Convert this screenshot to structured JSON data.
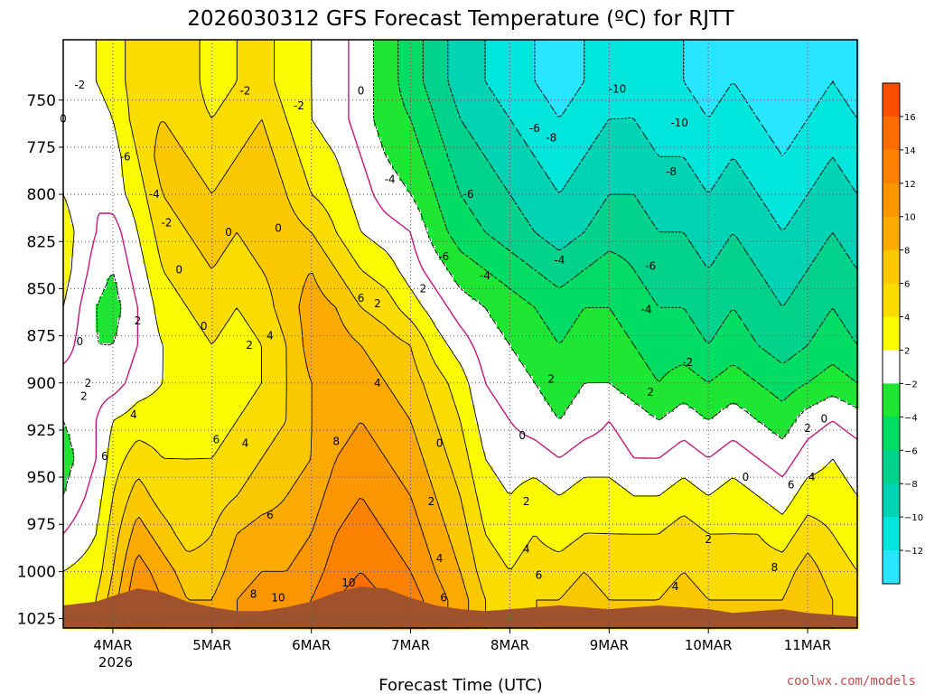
{
  "chart_data": {
    "type": "heatmap",
    "title": "2026030312 GFS Forecast Temperature (ºC) for RJTT",
    "xlabel": "Forecast Time (UTC)",
    "ylabel": "",
    "credit": "coolwx.com/models",
    "x_ticks": [
      "4MAR",
      "5MAR",
      "6MAR",
      "7MAR",
      "8MAR",
      "9MAR",
      "10MAR",
      "11MAR"
    ],
    "x_year": "2026",
    "xlim_hours": [
      -12,
      180
    ],
    "y_ticks": [
      "750",
      "775",
      "800",
      "825",
      "850",
      "875",
      "900",
      "925",
      "950",
      "975",
      "1000",
      "1025"
    ],
    "y_values": [
      750,
      775,
      800,
      825,
      850,
      875,
      900,
      925,
      950,
      975,
      1000,
      1025
    ],
    "ylim_hpa": [
      718,
      1030
    ],
    "colorbar_ticks": [
      "16",
      "14",
      "12",
      "10",
      "8",
      "6",
      "4",
      "2",
      "−2",
      "−4",
      "−6",
      "−8",
      "−10",
      "−12"
    ],
    "colorbar_colors": [
      "#fa5000",
      "#fa6e00",
      "#fa8200",
      "#fa9600",
      "#faaa00",
      "#fac800",
      "#fadc00",
      "#fafa00",
      "#ffffff",
      "#1ee632",
      "#00dc64",
      "#00d28c",
      "#00d2b4",
      "#00e6dc",
      "#28e6ff"
    ],
    "levels_hpa": [
      740,
      760,
      780,
      800,
      820,
      840,
      860,
      880,
      900,
      920,
      940,
      960,
      980,
      1000,
      1015
    ],
    "times_hours": [
      -12,
      -4,
      0,
      6,
      12,
      18,
      24,
      30,
      36,
      42,
      48,
      54,
      60,
      66,
      72,
      78,
      84,
      90,
      96,
      102,
      108,
      114,
      120,
      126,
      132,
      138,
      144,
      150,
      156,
      162,
      168,
      174,
      180
    ],
    "temperature_c": [
      [
        1,
        2,
        3,
        5,
        6,
        5,
        3,
        4,
        5,
        3,
        2,
        1,
        -1,
        -3,
        -5,
        -7,
        -9,
        -10,
        -11,
        -12,
        -13,
        -12,
        -11,
        -10,
        -11,
        -12,
        -13,
        -12,
        -13,
        -14,
        -13,
        -12,
        -13
      ],
      [
        1,
        1,
        2,
        5,
        6,
        5,
        4,
        5,
        6,
        4,
        2,
        1,
        -1,
        -3,
        -4,
        -6,
        -8,
        -9,
        -10,
        -11,
        -12,
        -11,
        -10,
        -10,
        -11,
        -11,
        -12,
        -11,
        -12,
        -13,
        -12,
        -11,
        -12
      ],
      [
        2,
        1,
        1,
        4,
        7,
        6,
        5,
        6,
        7,
        5,
        3,
        2,
        0,
        -2,
        -3,
        -5,
        -7,
        -8,
        -9,
        -10,
        -11,
        -10,
        -9,
        -9,
        -10,
        -10,
        -11,
        -10,
        -11,
        -12,
        -11,
        -10,
        -11
      ],
      [
        2,
        0,
        1,
        3,
        6,
        7,
        6,
        7,
        8,
        6,
        4,
        3,
        1,
        -1,
        -2,
        -4,
        -6,
        -7,
        -8,
        -9,
        -10,
        -9,
        -8,
        -8,
        -9,
        -9,
        -10,
        -9,
        -10,
        -11,
        -10,
        -9,
        -10
      ],
      [
        3,
        0,
        -1,
        2,
        5,
        6,
        7,
        6,
        7,
        7,
        6,
        4,
        2,
        1,
        0,
        -3,
        -5,
        -6,
        -7,
        -8,
        -9,
        -8,
        -7,
        -7,
        -8,
        -8,
        -9,
        -8,
        -9,
        -10,
        -9,
        -8,
        -9
      ],
      [
        3,
        -1,
        -2,
        1,
        4,
        5,
        6,
        5,
        6,
        7,
        8,
        6,
        4,
        3,
        1,
        -1,
        -3,
        -4,
        -5,
        -6,
        -7,
        -6,
        -5,
        -6,
        -7,
        -7,
        -8,
        -7,
        -8,
        -9,
        -8,
        -7,
        -8
      ],
      [
        2,
        -2,
        -3,
        0,
        3,
        4,
        5,
        4,
        5,
        7,
        9,
        8,
        6,
        5,
        3,
        1,
        -1,
        -2,
        -3,
        -4,
        -5,
        -4,
        -4,
        -5,
        -6,
        -6,
        -7,
        -6,
        -7,
        -8,
        -7,
        -6,
        -7
      ],
      [
        1,
        -2,
        -2,
        0,
        2,
        3,
        4,
        3,
        4,
        6,
        9,
        9,
        8,
        7,
        6,
        3,
        1,
        -1,
        -2,
        -3,
        -4,
        -3,
        -3,
        -4,
        -5,
        -5,
        -6,
        -5,
        -6,
        -7,
        -6,
        -5,
        -6
      ],
      [
        -1,
        -1,
        -1,
        1,
        2,
        3,
        3,
        3,
        4,
        6,
        8,
        9,
        9,
        8,
        7,
        5,
        3,
        0,
        -1,
        -2,
        -3,
        -2,
        -2,
        -3,
        -4,
        -3,
        -4,
        -3,
        -4,
        -5,
        -4,
        -3,
        -4
      ],
      [
        -2,
        0,
        2,
        3,
        3,
        3,
        3,
        4,
        5,
        6,
        8,
        9,
        10,
        9,
        8,
        6,
        4,
        1,
        0,
        -1,
        -2,
        -1,
        0,
        -1,
        -2,
        -1,
        -2,
        -1,
        -2,
        -3,
        -1,
        0,
        -1
      ],
      [
        -3,
        0,
        3,
        5,
        4,
        4,
        4,
        5,
        6,
        7,
        8,
        10,
        11,
        10,
        9,
        7,
        5,
        2,
        1,
        1,
        0,
        1,
        1,
        0,
        0,
        1,
        0,
        1,
        0,
        -1,
        1,
        2,
        1
      ],
      [
        -2,
        1,
        4,
        7,
        5,
        4,
        5,
        6,
        7,
        8,
        9,
        11,
        12,
        11,
        10,
        8,
        6,
        3,
        2,
        3,
        2,
        3,
        3,
        2,
        2,
        3,
        2,
        3,
        2,
        1,
        3,
        3,
        2
      ],
      [
        0,
        2,
        5,
        9,
        7,
        5,
        6,
        8,
        9,
        9,
        10,
        12,
        13,
        12,
        11,
        9,
        7,
        4,
        3,
        4,
        3,
        4,
        4,
        4,
        4,
        5,
        4,
        4,
        4,
        3,
        5,
        4,
        3
      ],
      [
        2,
        3,
        6,
        11,
        9,
        7,
        7,
        9,
        10,
        10,
        11,
        13,
        14,
        13,
        12,
        10,
        8,
        5,
        4,
        5,
        5,
        6,
        5,
        5,
        5,
        6,
        5,
        5,
        5,
        5,
        7,
        5,
        4
      ],
      [
        3,
        4,
        7,
        12,
        10,
        8,
        8,
        10,
        11,
        11,
        12,
        14,
        15,
        14,
        13,
        11,
        9,
        6,
        5,
        6,
        6,
        7,
        6,
        6,
        6,
        7,
        6,
        6,
        6,
        6,
        8,
        6,
        5
      ]
    ],
    "surface_hpa": [
      1018,
      1016,
      1013,
      1009,
      1011,
      1016,
      1019,
      1021,
      1021,
      1019,
      1016,
      1011,
      1008,
      1009,
      1014,
      1018,
      1020,
      1021,
      1020,
      1019,
      1018,
      1019,
      1020,
      1019,
      1018,
      1019,
      1020,
      1022,
      1021,
      1020,
      1022,
      1023,
      1024
    ],
    "contour_labels": [
      {
        "text": "-2",
        "t": -8,
        "p": 742
      },
      {
        "text": "0",
        "t": -12,
        "p": 760
      },
      {
        "text": "-6",
        "t": 3,
        "p": 780
      },
      {
        "text": "-4",
        "t": 10,
        "p": 800
      },
      {
        "text": "-2",
        "t": 13,
        "p": 815
      },
      {
        "text": "-2",
        "t": 32,
        "p": 745
      },
      {
        "text": "-2",
        "t": 45,
        "p": 753
      },
      {
        "text": "0",
        "t": 60,
        "p": 745
      },
      {
        "text": "-4",
        "t": 67,
        "p": 792
      },
      {
        "text": "0",
        "t": 28,
        "p": 820
      },
      {
        "text": "0",
        "t": 40,
        "p": 818
      },
      {
        "text": "0",
        "t": 16,
        "p": 840
      },
      {
        "text": "0",
        "t": 22,
        "p": 870
      },
      {
        "text": "2",
        "t": 33,
        "p": 880
      },
      {
        "text": "4",
        "t": 38,
        "p": 875
      },
      {
        "text": "6",
        "t": 60,
        "p": 855
      },
      {
        "text": "2",
        "t": 64,
        "p": 858
      },
      {
        "text": "4",
        "t": 64,
        "p": 900
      },
      {
        "text": "2",
        "t": 75,
        "p": 850
      },
      {
        "text": "-6",
        "t": 80,
        "p": 833
      },
      {
        "text": "-6",
        "t": 86,
        "p": 800
      },
      {
        "text": "-4",
        "t": 90,
        "p": 843
      },
      {
        "text": "-6",
        "t": 102,
        "p": 765
      },
      {
        "text": "-8",
        "t": 106,
        "p": 770
      },
      {
        "text": "-4",
        "t": 108,
        "p": 835
      },
      {
        "text": "-6",
        "t": 130,
        "p": 838
      },
      {
        "text": "-10",
        "t": 122,
        "p": 744
      },
      {
        "text": "-10",
        "t": 137,
        "p": 762
      },
      {
        "text": "-8",
        "t": 135,
        "p": 788
      },
      {
        "text": "-4",
        "t": 129,
        "p": 861
      },
      {
        "text": "-2",
        "t": 139,
        "p": 889
      },
      {
        "text": "2",
        "t": -6,
        "p": 900
      },
      {
        "text": "0",
        "t": -8,
        "p": 878
      },
      {
        "text": "2",
        "t": -7,
        "p": 907
      },
      {
        "text": "2",
        "t": 6,
        "p": 867
      },
      {
        "text": "4",
        "t": 5,
        "p": 917
      },
      {
        "text": "6",
        "t": -2,
        "p": 939
      },
      {
        "text": "6",
        "t": 25,
        "p": 930
      },
      {
        "text": "4",
        "t": 32,
        "p": 932
      },
      {
        "text": "6",
        "t": 38,
        "p": 970
      },
      {
        "text": "8",
        "t": 54,
        "p": 931
      },
      {
        "text": "0",
        "t": 79,
        "p": 932
      },
      {
        "text": "2",
        "t": 77,
        "p": 963
      },
      {
        "text": "4",
        "t": 79,
        "p": 993
      },
      {
        "text": "6",
        "t": 80,
        "p": 1014
      },
      {
        "text": "8",
        "t": 34,
        "p": 1012
      },
      {
        "text": "10",
        "t": 40,
        "p": 1014
      },
      {
        "text": "10",
        "t": 57,
        "p": 1006
      },
      {
        "text": "0",
        "t": 99,
        "p": 928
      },
      {
        "text": "2",
        "t": 100,
        "p": 963
      },
      {
        "text": "2",
        "t": 106,
        "p": 898
      },
      {
        "text": "4",
        "t": 100,
        "p": 988
      },
      {
        "text": "6",
        "t": 103,
        "p": 1002
      },
      {
        "text": "2",
        "t": 130,
        "p": 905
      },
      {
        "text": "0",
        "t": 153,
        "p": 950
      },
      {
        "text": "2",
        "t": 144,
        "p": 983
      },
      {
        "text": "4",
        "t": 136,
        "p": 1008
      },
      {
        "text": "6",
        "t": 164,
        "p": 954
      },
      {
        "text": "4",
        "t": 169,
        "p": 950
      },
      {
        "text": "8",
        "t": 160,
        "p": 998
      },
      {
        "text": "2",
        "t": 168,
        "p": 924
      },
      {
        "text": "0",
        "t": 172,
        "p": 919
      }
    ]
  }
}
